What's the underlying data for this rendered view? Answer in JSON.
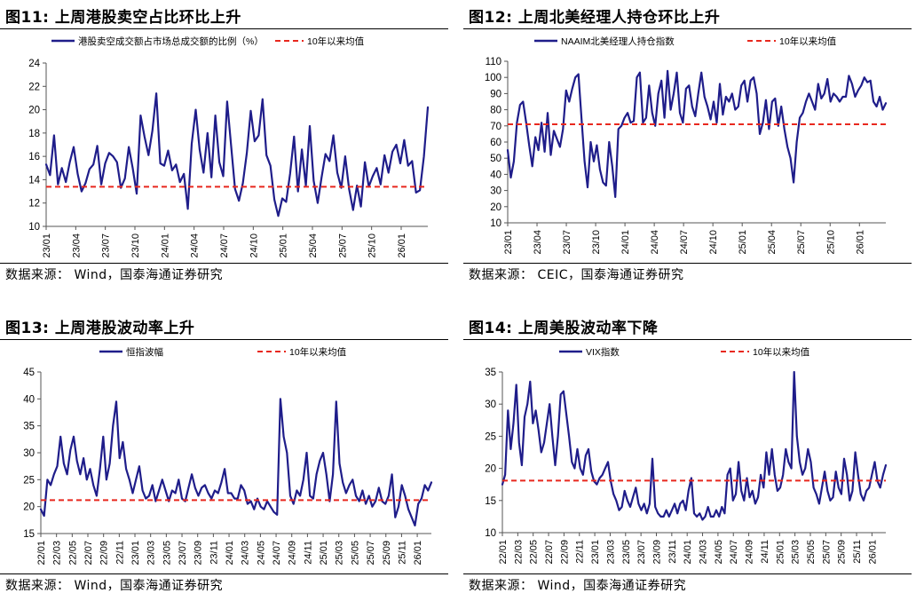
{
  "panels": [
    {
      "id": "p11",
      "title": "图11:  上周港股卖空占比环比上升",
      "source": "数据来源：  Wind，国泰海通证券研究"
    },
    {
      "id": "p12",
      "title": "图12:  上周北美经理人持仓环比上升",
      "source": "数据来源：  CEIC，国泰海通证券研究"
    },
    {
      "id": "p13",
      "title": "图13:  上周港股波动率上升",
      "source": "数据来源：  Wind，国泰海通证券研究"
    },
    {
      "id": "p14",
      "title": "图14:  上周美股波动率下降",
      "source": "数据来源：  Wind，国泰海通证券研究"
    }
  ],
  "colors": {
    "series": "#1f1d8a",
    "mean": "#e8281e"
  },
  "chart_data": [
    {
      "type": "line",
      "title": "上周港股卖空占比环比上升",
      "series": [
        {
          "name": "港股卖空成交额占市场总成交额的比例（%）",
          "y": [
            15.3,
            14.4,
            17.8,
            13.6,
            15.0,
            13.8,
            15.5,
            16.8,
            14.5,
            13.0,
            13.7,
            14.9,
            15.3,
            16.9,
            13.6,
            15.4,
            16.3,
            16.0,
            15.5,
            13.3,
            14.1,
            16.8,
            15.0,
            12.8,
            19.5,
            17.7,
            16.1,
            18.2,
            21.4,
            15.4,
            15.2,
            16.5,
            14.8,
            15.3,
            13.8,
            14.5,
            11.5,
            17.1,
            20.0,
            16.6,
            14.6,
            18.0,
            14.2,
            19.5,
            15.5,
            14.3,
            20.7,
            16.9,
            13.2,
            12.2,
            13.7,
            16.3,
            19.9,
            17.3,
            17.8,
            20.9,
            16.1,
            15.2,
            12.3,
            10.9,
            12.4,
            12.1,
            14.5,
            17.7,
            13.0,
            16.6,
            13.5,
            18.6,
            13.9,
            12.0,
            14.2,
            16.2,
            15.6,
            17.8,
            14.6,
            13.3,
            16.0,
            13.2,
            11.4,
            13.5,
            11.7,
            15.5,
            13.4,
            14.3,
            15.0,
            13.6,
            16.1,
            14.6,
            16.4,
            17.0,
            15.4,
            17.4,
            15.2,
            15.6,
            12.9,
            13.1,
            16.0,
            20.2
          ],
          "mean": 13.4
        }
      ],
      "x_ticks": [
        "23/01",
        "23/04",
        "23/07",
        "23/10",
        "24/01",
        "24/04",
        "24/07",
        "24/10",
        "25/01",
        "25/04",
        "25/07",
        "25/10",
        "26/01"
      ],
      "y_ticks": [
        10,
        12,
        14,
        16,
        18,
        20,
        22,
        24
      ],
      "ylim": [
        10,
        24
      ],
      "legend": [
        "港股卖空成交额占市场总成交额的比例（%）",
        "10年以来均值"
      ]
    },
    {
      "type": "line",
      "title": "上周北美经理人持仓环比上升",
      "series": [
        {
          "name": "NAAIM北美经理人持仓指数",
          "y": [
            55,
            38,
            48,
            72,
            83,
            85,
            72,
            58,
            45,
            63,
            55,
            72,
            54,
            78,
            52,
            67,
            62,
            57,
            68,
            92,
            85,
            93,
            100,
            102,
            75,
            48,
            32,
            60,
            48,
            58,
            43,
            35,
            33,
            60,
            45,
            26,
            68,
            70,
            75,
            78,
            72,
            73,
            100,
            103,
            72,
            75,
            95,
            78,
            70,
            90,
            98,
            75,
            104,
            80,
            90,
            103,
            78,
            72,
            93,
            95,
            82,
            76,
            90,
            103,
            88,
            82,
            74,
            85,
            72,
            96,
            77,
            88,
            85,
            90,
            80,
            82,
            95,
            98,
            85,
            98,
            100,
            90,
            65,
            72,
            86,
            68,
            85,
            87,
            70,
            82,
            68,
            57,
            50,
            35,
            60,
            75,
            78,
            85,
            90,
            85,
            80,
            96,
            87,
            90,
            99,
            85,
            90,
            88,
            85,
            88,
            88,
            101,
            96,
            88,
            92,
            95,
            100,
            97,
            98,
            85,
            82,
            88,
            80,
            84
          ],
          "mean": 71
        }
      ],
      "x_ticks": [
        "23/01",
        "23/04",
        "23/07",
        "23/10",
        "24/01",
        "24/04",
        "24/07",
        "24/10",
        "25/01",
        "25/04",
        "25/07",
        "25/10",
        "26/01"
      ],
      "y_ticks": [
        10,
        20,
        30,
        40,
        50,
        60,
        70,
        80,
        90,
        100,
        110
      ],
      "ylim": [
        10,
        110
      ],
      "legend": [
        "NAAIM北美经理人持仓指数",
        "10年以来均值"
      ]
    },
    {
      "type": "line",
      "title": "上周港股波动率上升",
      "series": [
        {
          "name": "恒指波幅",
          "y": [
            19.5,
            18.3,
            25,
            24,
            26,
            27.5,
            33,
            28,
            26,
            30.5,
            33,
            28.5,
            26,
            29,
            25,
            27,
            24,
            22,
            27,
            33,
            25,
            28,
            35,
            39.5,
            29,
            32,
            27,
            25,
            22.5,
            25,
            27.5,
            23,
            21.5,
            22,
            24,
            21,
            23,
            25,
            23,
            21,
            23,
            22.5,
            25,
            21.5,
            21,
            23.5,
            26,
            23.5,
            22,
            23.5,
            24,
            22.5,
            21.5,
            23,
            22.5,
            24.5,
            27,
            22.5,
            22.5,
            21.5,
            21.5,
            24,
            23,
            20.5,
            21,
            19.5,
            21.5,
            20,
            19.5,
            21,
            20,
            19,
            18.5,
            40,
            33,
            30,
            22,
            20.5,
            23,
            22,
            25,
            30,
            22,
            21.5,
            26,
            28.5,
            30,
            26,
            21,
            26,
            39.5,
            28,
            24.5,
            22.5,
            24,
            25,
            22,
            21,
            23,
            20.5,
            22,
            20,
            21,
            23.5,
            21,
            20.5,
            22,
            26,
            18,
            20,
            24,
            22,
            19.5,
            18,
            16.5,
            20.5,
            21.5,
            24,
            23,
            24.5
          ],
          "mean": 21.2
        }
      ],
      "x_ticks": [
        "22/01",
        "22/03",
        "22/05",
        "22/07",
        "22/09",
        "22/11",
        "23/01",
        "23/03",
        "23/05",
        "23/07",
        "23/09",
        "23/11",
        "24/01",
        "24/03",
        "24/05",
        "24/07",
        "24/09",
        "24/11",
        "25/01",
        "25/03",
        "25/05",
        "25/07",
        "25/09",
        "25/11",
        "26/01"
      ],
      "y_ticks": [
        15,
        20,
        25,
        30,
        35,
        40,
        45
      ],
      "ylim": [
        15,
        45
      ],
      "legend": [
        "恒指波幅",
        "10年以来均值"
      ]
    },
    {
      "type": "line",
      "title": "上周美股波动率下降",
      "series": [
        {
          "name": "VIX指数",
          "y": [
            17.5,
            19,
            29,
            23,
            27,
            33,
            24,
            20.5,
            28,
            30,
            33.5,
            27,
            29,
            26,
            22.5,
            24,
            27,
            30,
            25,
            20.5,
            25,
            31.5,
            32,
            28.5,
            25,
            21,
            20,
            23,
            20,
            19,
            22,
            23,
            19.5,
            18,
            17.5,
            18.5,
            19,
            20,
            21,
            18,
            16,
            15,
            13.5,
            14,
            16.5,
            15,
            14,
            15.5,
            17,
            14.5,
            13.5,
            14.5,
            13,
            14.5,
            21.5,
            14,
            13,
            12.5,
            12.5,
            13.5,
            12.5,
            13.5,
            14.5,
            13,
            14.5,
            15,
            13.5,
            16.5,
            18.5,
            13,
            12.5,
            13,
            12,
            12.5,
            14,
            12.5,
            12.5,
            13.5,
            12.5,
            14,
            13,
            19,
            20,
            15,
            16,
            21,
            16.5,
            15,
            18.5,
            15.5,
            16.5,
            14.5,
            15.5,
            19,
            17,
            22.5,
            19,
            23,
            19,
            16.5,
            17,
            19,
            23,
            21,
            20,
            35,
            25,
            21,
            19,
            20,
            23,
            21,
            17,
            16,
            14.5,
            17,
            19.5,
            16.5,
            15,
            15.5,
            19.5,
            17,
            16,
            21.5,
            19,
            15,
            16.5,
            22.5,
            19,
            16,
            15,
            16.5,
            17,
            19,
            21,
            18,
            17,
            19,
            20.5
          ],
          "mean": 18.1
        }
      ],
      "x_ticks": [
        "22/01",
        "22/03",
        "22/05",
        "22/07",
        "22/09",
        "22/11",
        "23/01",
        "23/03",
        "23/05",
        "23/07",
        "23/09",
        "23/11",
        "24/01",
        "24/03",
        "24/05",
        "24/07",
        "24/09",
        "24/11",
        "25/01",
        "25/03",
        "25/05",
        "25/07",
        "25/09",
        "25/11",
        "26/01"
      ],
      "y_ticks": [
        10,
        15,
        20,
        25,
        30,
        35
      ],
      "ylim": [
        10,
        35
      ],
      "legend": [
        "VIX指数",
        "10年以来均值"
      ]
    }
  ]
}
